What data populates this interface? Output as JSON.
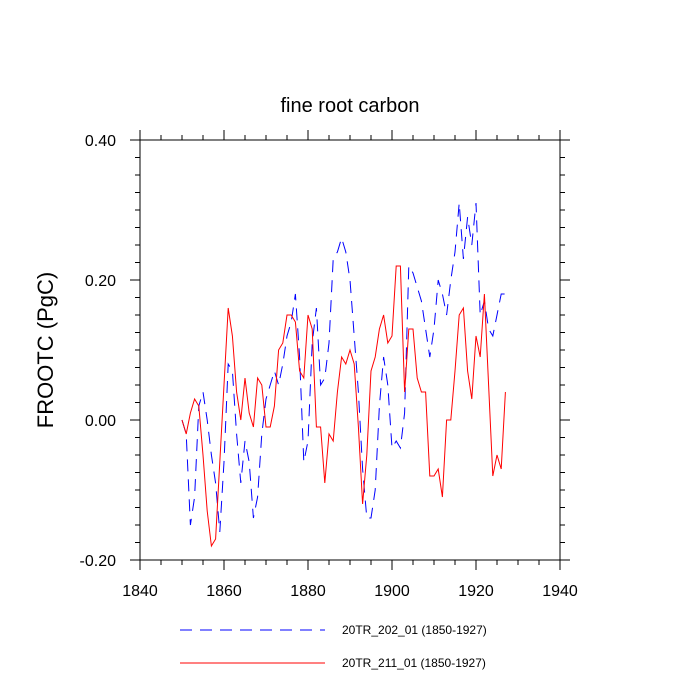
{
  "chart_data": {
    "type": "line",
    "title": "fine root carbon",
    "xlabel": "",
    "ylabel": "FROOTC  (PgC)",
    "xlim": [
      1840,
      1940
    ],
    "ylim": [
      -0.2,
      0.4
    ],
    "x_ticks": [
      1840,
      1860,
      1880,
      1900,
      1920,
      1940
    ],
    "x_tick_labels": [
      "1840",
      "1860",
      "1880",
      "1900",
      "1920",
      "1940"
    ],
    "y_ticks": [
      -0.2,
      0.0,
      0.2,
      0.4
    ],
    "y_tick_labels": [
      "-0.20",
      "0.00",
      "0.20",
      "0.40"
    ],
    "legend_position": "bottom",
    "series": [
      {
        "name": "20TR_202_01 (1850-1927)",
        "color": "#0000ff",
        "style": "dashed",
        "x": [
          1850,
          1851,
          1852,
          1853,
          1854,
          1855,
          1856,
          1857,
          1858,
          1859,
          1860,
          1861,
          1862,
          1863,
          1864,
          1865,
          1866,
          1867,
          1868,
          1869,
          1870,
          1871,
          1872,
          1873,
          1874,
          1875,
          1876,
          1877,
          1878,
          1879,
          1880,
          1881,
          1882,
          1883,
          1884,
          1885,
          1886,
          1887,
          1888,
          1889,
          1890,
          1891,
          1892,
          1893,
          1894,
          1895,
          1896,
          1897,
          1898,
          1899,
          1900,
          1901,
          1902,
          1903,
          1904,
          1905,
          1906,
          1907,
          1908,
          1909,
          1910,
          1911,
          1912,
          1913,
          1914,
          1915,
          1916,
          1917,
          1918,
          1919,
          1920,
          1921,
          1922,
          1923,
          1924,
          1925,
          1926,
          1927
        ],
        "values": [
          0.0,
          -0.02,
          -0.15,
          -0.11,
          0.02,
          0.04,
          0.0,
          -0.05,
          -0.09,
          -0.16,
          -0.06,
          0.08,
          0.07,
          -0.02,
          -0.09,
          -0.03,
          -0.06,
          -0.14,
          -0.11,
          -0.02,
          0.03,
          0.05,
          0.07,
          0.05,
          0.08,
          0.12,
          0.14,
          0.18,
          0.09,
          -0.06,
          -0.03,
          0.11,
          0.16,
          0.05,
          0.06,
          0.11,
          0.23,
          0.24,
          0.26,
          0.24,
          0.2,
          0.12,
          0.04,
          -0.07,
          -0.14,
          -0.14,
          -0.1,
          0.02,
          0.09,
          0.05,
          -0.04,
          -0.03,
          -0.04,
          0.01,
          0.22,
          0.21,
          0.19,
          0.17,
          0.13,
          0.09,
          0.13,
          0.2,
          0.18,
          0.15,
          0.2,
          0.24,
          0.31,
          0.23,
          0.29,
          0.25,
          0.31,
          0.15,
          0.17,
          0.13,
          0.12,
          0.15,
          0.18,
          0.18
        ]
      },
      {
        "name": "20TR_211_01 (1850-1927)",
        "color": "#ff0000",
        "style": "solid",
        "x": [
          1850,
          1851,
          1852,
          1853,
          1854,
          1855,
          1856,
          1857,
          1858,
          1859,
          1860,
          1861,
          1862,
          1863,
          1864,
          1865,
          1866,
          1867,
          1868,
          1869,
          1870,
          1871,
          1872,
          1873,
          1874,
          1875,
          1876,
          1877,
          1878,
          1879,
          1880,
          1881,
          1882,
          1883,
          1884,
          1885,
          1886,
          1887,
          1888,
          1889,
          1890,
          1891,
          1892,
          1893,
          1894,
          1895,
          1896,
          1897,
          1898,
          1899,
          1900,
          1901,
          1902,
          1903,
          1904,
          1905,
          1906,
          1907,
          1908,
          1909,
          1910,
          1911,
          1912,
          1913,
          1914,
          1915,
          1916,
          1917,
          1918,
          1919,
          1920,
          1921,
          1922,
          1923,
          1924,
          1925,
          1926,
          1927
        ],
        "values": [
          0.0,
          -0.02,
          0.01,
          0.03,
          0.02,
          -0.05,
          -0.13,
          -0.18,
          -0.17,
          -0.06,
          0.05,
          0.16,
          0.12,
          0.04,
          0.0,
          0.06,
          0.01,
          -0.01,
          0.06,
          0.05,
          -0.01,
          -0.01,
          0.02,
          0.1,
          0.11,
          0.15,
          0.15,
          0.14,
          0.07,
          0.06,
          0.15,
          0.13,
          -0.01,
          -0.01,
          -0.09,
          -0.02,
          -0.03,
          0.04,
          0.09,
          0.08,
          0.1,
          0.08,
          -0.01,
          -0.12,
          -0.05,
          0.07,
          0.09,
          0.13,
          0.15,
          0.11,
          0.12,
          0.22,
          0.22,
          0.04,
          0.13,
          0.13,
          0.06,
          0.04,
          0.04,
          -0.08,
          -0.08,
          -0.07,
          -0.11,
          0.0,
          0.0,
          0.07,
          0.15,
          0.16,
          0.07,
          0.03,
          0.12,
          0.09,
          0.18,
          0.05,
          -0.08,
          -0.05,
          -0.07,
          0.04
        ]
      }
    ]
  }
}
